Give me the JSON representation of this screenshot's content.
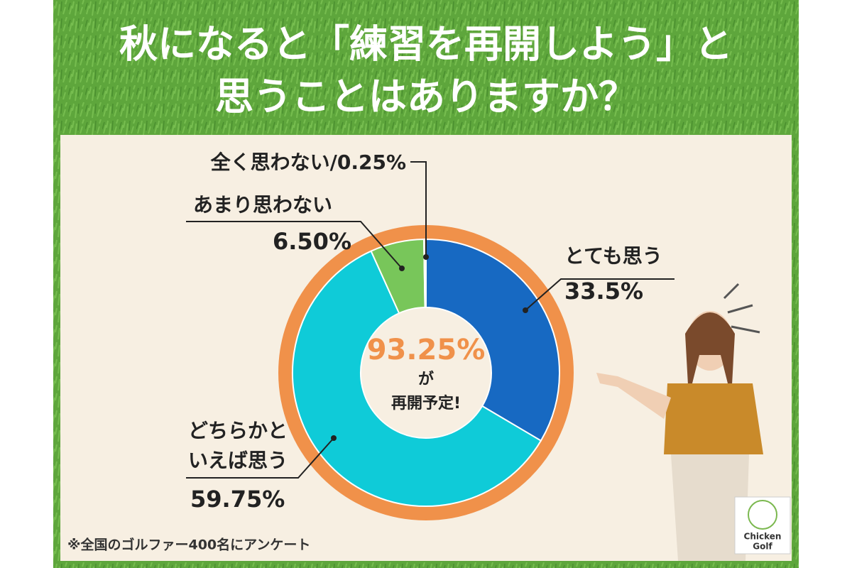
{
  "chart_data": {
    "type": "pie",
    "title_lines": [
      "秋になると「練習を再開しよう」と",
      "思うことはありますか？"
    ],
    "categories": [
      "とても思う",
      "どちらかといえば思う",
      "あまり思わない",
      "全く思わない"
    ],
    "values": [
      33.5,
      59.75,
      6.5,
      0.25
    ],
    "value_labels": [
      "33.5%",
      "59.75%",
      "6.50%",
      "0.25%"
    ],
    "label_separator": "/",
    "colors": [
      "#1769c2",
      "#0fcbd8",
      "#78c65a",
      "#e9ddcb"
    ],
    "center_text": [
      "93.25%",
      "が",
      "再開予定!"
    ],
    "note": "※全国のゴルファー400名にアンケート",
    "logo": [
      "Chicken",
      "Golf"
    ]
  }
}
